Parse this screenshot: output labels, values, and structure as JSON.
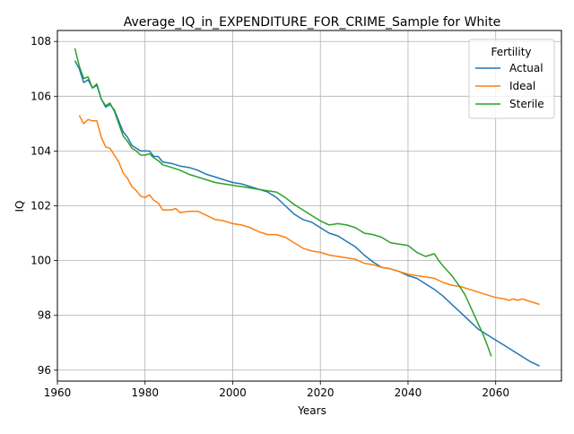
{
  "chart_data": {
    "type": "line",
    "title": "Average_IQ_in_EXPENDITURE_FOR_CRIME_Sample for White",
    "xlabel": "Years",
    "ylabel": "IQ",
    "xlim": [
      1960,
      2075
    ],
    "ylim": [
      95.6,
      108.4
    ],
    "xticks": [
      1960,
      1980,
      2000,
      2020,
      2040,
      2060
    ],
    "yticks": [
      96,
      98,
      100,
      102,
      104,
      106,
      108
    ],
    "grid": true,
    "legend": {
      "title": "Fertility",
      "position": "top-right"
    },
    "series": [
      {
        "name": "Actual",
        "color": "#1f77b4",
        "x": [
          1964,
          1965,
          1966,
          1967,
          1968,
          1969,
          1970,
          1971,
          1972,
          1973,
          1974,
          1975,
          1976,
          1977,
          1978,
          1979,
          1980,
          1981,
          1982,
          1983,
          1984,
          1986,
          1988,
          1990,
          1992,
          1994,
          1996,
          1998,
          2000,
          2002,
          2004,
          2006,
          2008,
          2010,
          2012,
          2014,
          2016,
          2018,
          2020,
          2022,
          2024,
          2026,
          2028,
          2030,
          2032,
          2034,
          2036,
          2038,
          2040,
          2042,
          2044,
          2046,
          2048,
          2050,
          2052,
          2054,
          2056,
          2058,
          2060,
          2062,
          2064,
          2066,
          2068,
          2070
        ],
        "values": [
          107.3,
          107.0,
          106.5,
          106.6,
          106.3,
          106.4,
          105.9,
          105.6,
          105.7,
          105.5,
          105.1,
          104.7,
          104.5,
          104.2,
          104.1,
          104.0,
          104.0,
          104.0,
          103.8,
          103.8,
          103.6,
          103.55,
          103.45,
          103.4,
          103.3,
          103.15,
          103.05,
          102.95,
          102.85,
          102.8,
          102.7,
          102.6,
          102.5,
          102.3,
          102.0,
          101.7,
          101.5,
          101.4,
          101.2,
          101.0,
          100.9,
          100.7,
          100.5,
          100.2,
          99.95,
          99.75,
          99.7,
          99.6,
          99.45,
          99.35,
          99.15,
          98.95,
          98.7,
          98.4,
          98.1,
          97.8,
          97.5,
          97.3,
          97.1,
          96.9,
          96.7,
          96.5,
          96.3,
          96.15
        ]
      },
      {
        "name": "Ideal",
        "color": "#ff7f0e",
        "x": [
          1965,
          1966,
          1967,
          1968,
          1969,
          1970,
          1971,
          1972,
          1973,
          1974,
          1975,
          1976,
          1977,
          1978,
          1979,
          1980,
          1981,
          1982,
          1983,
          1984,
          1986,
          1987,
          1988,
          1990,
          1992,
          1994,
          1996,
          1998,
          2000,
          2002,
          2004,
          2006,
          2008,
          2010,
          2012,
          2014,
          2016,
          2018,
          2020,
          2022,
          2024,
          2026,
          2028,
          2030,
          2032,
          2034,
          2036,
          2038,
          2040,
          2042,
          2044,
          2046,
          2048,
          2050,
          2052,
          2054,
          2056,
          2058,
          2060,
          2062,
          2063,
          2064,
          2065,
          2066,
          2068,
          2070
        ],
        "values": [
          105.3,
          105.0,
          105.15,
          105.1,
          105.1,
          104.5,
          104.15,
          104.1,
          103.85,
          103.6,
          103.2,
          103.0,
          102.7,
          102.55,
          102.35,
          102.3,
          102.4,
          102.2,
          102.1,
          101.85,
          101.85,
          101.9,
          101.75,
          101.8,
          101.8,
          101.65,
          101.5,
          101.45,
          101.35,
          101.3,
          101.2,
          101.05,
          100.95,
          100.95,
          100.85,
          100.65,
          100.45,
          100.35,
          100.3,
          100.2,
          100.15,
          100.1,
          100.05,
          99.9,
          99.85,
          99.75,
          99.7,
          99.6,
          99.5,
          99.45,
          99.4,
          99.35,
          99.2,
          99.1,
          99.05,
          98.95,
          98.85,
          98.75,
          98.65,
          98.6,
          98.55,
          98.6,
          98.55,
          98.6,
          98.5,
          98.4
        ]
      },
      {
        "name": "Sterile",
        "color": "#2ca02c",
        "x": [
          1964,
          1965,
          1966,
          1967,
          1968,
          1969,
          1970,
          1971,
          1972,
          1973,
          1974,
          1975,
          1976,
          1977,
          1978,
          1979,
          1980,
          1981,
          1982,
          1983,
          1984,
          1986,
          1988,
          1990,
          1992,
          1994,
          1996,
          1998,
          2000,
          2002,
          2004,
          2006,
          2008,
          2010,
          2012,
          2014,
          2016,
          2018,
          2020,
          2022,
          2024,
          2026,
          2028,
          2030,
          2032,
          2034,
          2036,
          2038,
          2040,
          2042,
          2044,
          2046,
          2047,
          2048,
          2050,
          2052,
          2053,
          2054,
          2055,
          2056,
          2057,
          2058,
          2059
        ],
        "values": [
          107.75,
          107.1,
          106.65,
          106.7,
          106.3,
          106.45,
          105.9,
          105.65,
          105.75,
          105.45,
          105.0,
          104.55,
          104.35,
          104.1,
          104.0,
          103.85,
          103.85,
          103.9,
          103.75,
          103.65,
          103.5,
          103.4,
          103.3,
          103.15,
          103.05,
          102.95,
          102.85,
          102.8,
          102.75,
          102.7,
          102.65,
          102.6,
          102.55,
          102.5,
          102.3,
          102.05,
          101.85,
          101.65,
          101.45,
          101.3,
          101.35,
          101.3,
          101.2,
          101.0,
          100.95,
          100.85,
          100.65,
          100.6,
          100.55,
          100.3,
          100.15,
          100.25,
          100.0,
          99.8,
          99.45,
          99.0,
          98.75,
          98.4,
          98.05,
          97.7,
          97.35,
          96.95,
          96.5
        ]
      }
    ]
  }
}
